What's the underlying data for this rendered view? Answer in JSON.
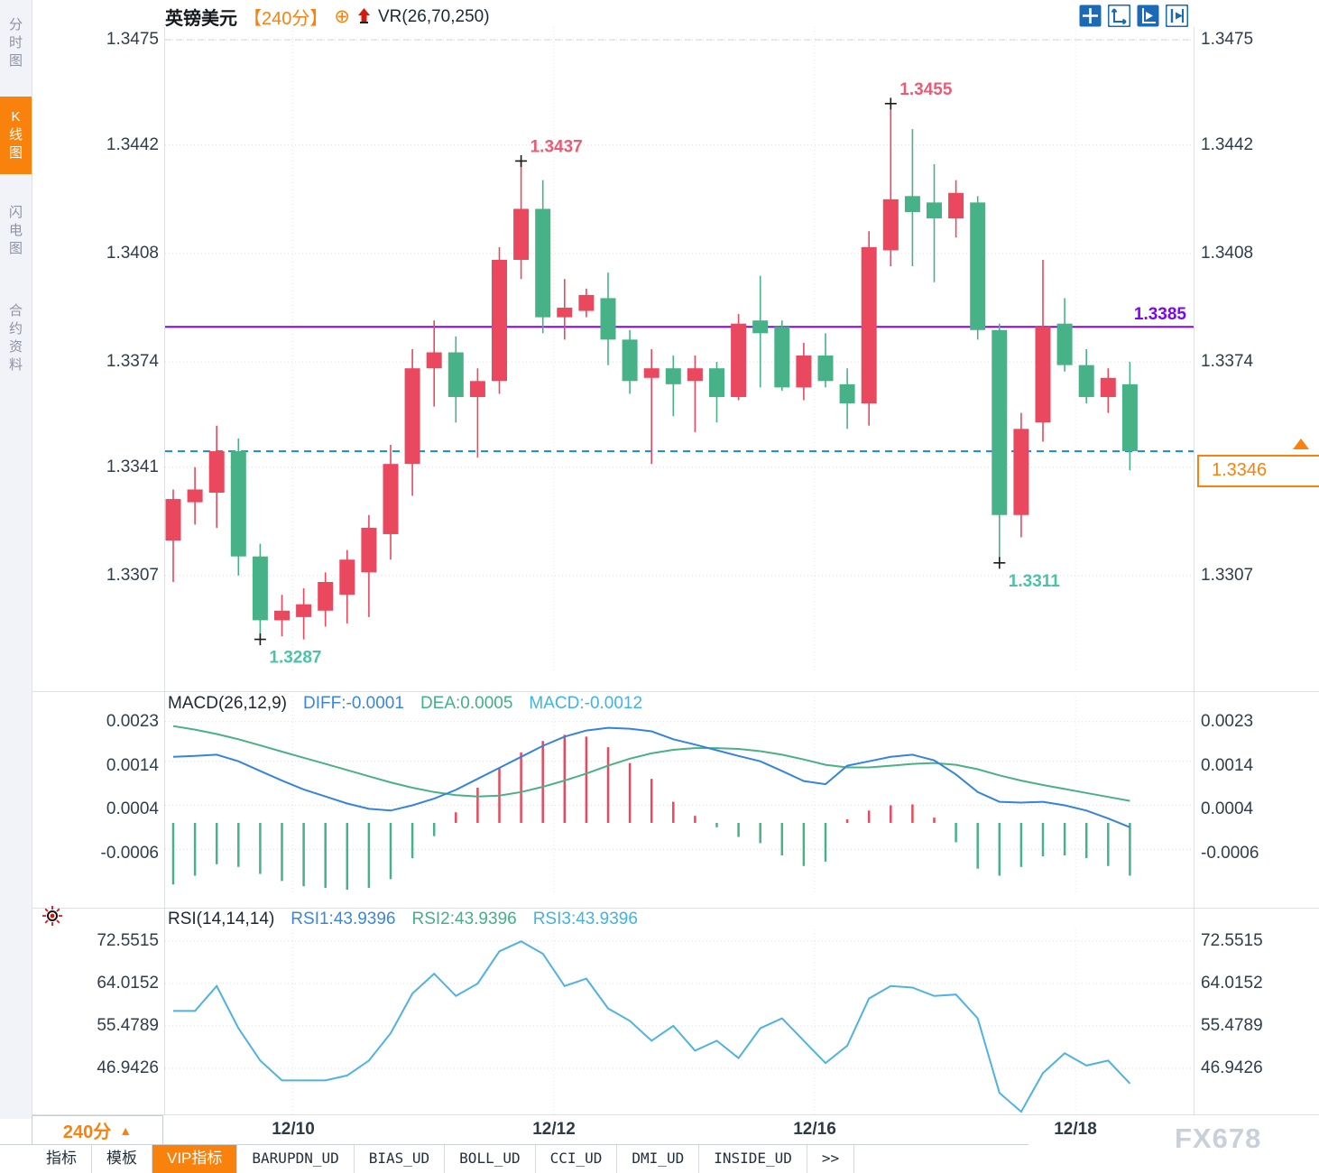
{
  "colors": {
    "up": "#e9485e",
    "down": "#47b287",
    "purple": "#7d05f5",
    "dashed_blue": "#1787e8",
    "orange": "#f8820c",
    "macd_diff": "#3584dc",
    "macd_dea": "#49b183",
    "rsi_line": "#4fb2e2",
    "annotation_high": "#ea5b75",
    "annotation_low": "#4cc2a8",
    "axis_text": "#303d4b",
    "icon_blue": "#1a6ab5"
  },
  "sidebar": {
    "tabs": [
      {
        "label": "分时图",
        "active": false
      },
      {
        "label": "K线图",
        "active": true
      },
      {
        "label": "闪电图",
        "active": false
      },
      {
        "label": "合约资料",
        "active": false
      }
    ]
  },
  "header": {
    "symbol": "英镑美元",
    "period": "【240分】",
    "plus_icon": "⊕",
    "indicator": "VR(26,70,250)"
  },
  "toolbar": {
    "icons": [
      "pan-crosshair",
      "axis-range",
      "auto-follow",
      "goto-latest"
    ]
  },
  "axes": {
    "price": [
      "1.3475",
      "1.3442",
      "1.3408",
      "1.3374",
      "1.3341",
      "1.3307"
    ],
    "macd": [
      "0.0023",
      "0.0014",
      "0.0004",
      "-0.0006"
    ],
    "rsi": [
      "72.5515",
      "64.0152",
      "55.4789",
      "46.9426"
    ]
  },
  "current_price": "1.3346",
  "chart_data": [
    {
      "type": "candlestick",
      "title": "英镑美元 240分",
      "x_labels": [
        "12/10",
        "12/12",
        "12/16",
        "12/18"
      ],
      "day_boundaries": [
        5.5,
        17.5,
        29.5,
        41.5
      ],
      "y_ticks": [
        1.3475,
        1.3442,
        1.3408,
        1.3374,
        1.3341,
        1.3307
      ],
      "ylim": [
        1.32767,
        1.3479
      ],
      "top_dashed_price": 1.3475,
      "ohlc": [
        [
          1.3318,
          1.3334,
          1.3305,
          1.3331
        ],
        [
          1.333,
          1.3341,
          1.3323,
          1.3334
        ],
        [
          1.3333,
          1.3354,
          1.3322,
          1.3346
        ],
        [
          1.3346,
          1.335,
          1.3307,
          1.3313
        ],
        [
          1.3313,
          1.3317,
          1.3287,
          1.3293
        ],
        [
          1.3293,
          1.3301,
          1.3288,
          1.3296
        ],
        [
          1.3294,
          1.3303,
          1.3287,
          1.3298
        ],
        [
          1.3296,
          1.3308,
          1.3291,
          1.3305
        ],
        [
          1.3301,
          1.3315,
          1.3292,
          1.3312
        ],
        [
          1.3308,
          1.3326,
          1.3294,
          1.3322
        ],
        [
          1.332,
          1.3348,
          1.3312,
          1.3342
        ],
        [
          1.3342,
          1.3378,
          1.3332,
          1.3372
        ],
        [
          1.3372,
          1.3387,
          1.336,
          1.3377
        ],
        [
          1.3377,
          1.3382,
          1.3355,
          1.3363
        ],
        [
          1.3363,
          1.3372,
          1.3344,
          1.3368
        ],
        [
          1.3368,
          1.341,
          1.3364,
          1.3406
        ],
        [
          1.3406,
          1.3437,
          1.34,
          1.3422
        ],
        [
          1.3422,
          1.3431,
          1.3383,
          1.3388
        ],
        [
          1.3388,
          1.34,
          1.3381,
          1.3391
        ],
        [
          1.339,
          1.3397,
          1.3388,
          1.3395
        ],
        [
          1.3394,
          1.3402,
          1.3373,
          1.3381
        ],
        [
          1.3381,
          1.3384,
          1.3364,
          1.3368
        ],
        [
          1.3369,
          1.3378,
          1.3342,
          1.3372
        ],
        [
          1.3372,
          1.3376,
          1.3357,
          1.3367
        ],
        [
          1.3368,
          1.3376,
          1.3352,
          1.3372
        ],
        [
          1.3372,
          1.3374,
          1.3355,
          1.3363
        ],
        [
          1.3363,
          1.3389,
          1.3362,
          1.3386
        ],
        [
          1.3387,
          1.3401,
          1.3366,
          1.3383
        ],
        [
          1.3385,
          1.3387,
          1.3365,
          1.3366
        ],
        [
          1.3366,
          1.338,
          1.3362,
          1.3376
        ],
        [
          1.3376,
          1.3383,
          1.3366,
          1.3368
        ],
        [
          1.3367,
          1.3372,
          1.3353,
          1.3361
        ],
        [
          1.3361,
          1.3415,
          1.3354,
          1.341
        ],
        [
          1.3409,
          1.3455,
          1.3404,
          1.3425
        ],
        [
          1.3426,
          1.3447,
          1.3404,
          1.3421
        ],
        [
          1.3424,
          1.3436,
          1.3399,
          1.3419
        ],
        [
          1.3419,
          1.3431,
          1.3413,
          1.3427
        ],
        [
          1.3424,
          1.3426,
          1.3381,
          1.3384
        ],
        [
          1.3384,
          1.3386,
          1.3311,
          1.3326
        ],
        [
          1.3326,
          1.3358,
          1.3319,
          1.3353
        ],
        [
          1.3355,
          1.3406,
          1.3349,
          1.3385
        ],
        [
          1.3386,
          1.3394,
          1.3371,
          1.3373
        ],
        [
          1.3373,
          1.3378,
          1.3361,
          1.3363
        ],
        [
          1.3363,
          1.3372,
          1.3358,
          1.3369
        ],
        [
          1.3367,
          1.3374,
          1.334,
          1.3346
        ]
      ],
      "annotations": [
        {
          "index": 4,
          "price": 1.3287,
          "label": "1.3287",
          "position": "below"
        },
        {
          "index": 16,
          "price": 1.3437,
          "label": "1.3437",
          "position": "above"
        },
        {
          "index": 33,
          "price": 1.3455,
          "label": "1.3455",
          "position": "above"
        },
        {
          "index": 38,
          "price": 1.3311,
          "label": "1.3311",
          "position": "below"
        }
      ],
      "hlines": [
        {
          "price": 1.3385,
          "label": "1.3385",
          "style": "solid",
          "color_key": "purple"
        },
        {
          "price": 1.3346,
          "label": "",
          "style": "dashed",
          "color_key": "dashed_blue"
        }
      ]
    },
    {
      "type": "macd",
      "title": "MACD(26,12,9)",
      "readouts": {
        "diff": "DIFF:-0.0001",
        "dea": "DEA:0.0005",
        "macd": "MACD:-0.0012"
      },
      "y_ticks": [
        0.0023,
        0.0014,
        0.0004,
        -0.0006
      ],
      "ylim": [
        -0.0016,
        0.00287
      ],
      "histogram_rule": "2*(diff-dea)",
      "diff": [
        0.0015,
        0.00152,
        0.00155,
        0.0014,
        0.00118,
        0.00096,
        0.00076,
        0.0006,
        0.00044,
        0.00032,
        0.00028,
        0.0004,
        0.00055,
        0.00075,
        0.001,
        0.00125,
        0.0015,
        0.00175,
        0.00196,
        0.0021,
        0.00216,
        0.00214,
        0.00208,
        0.0019,
        0.00178,
        0.00165,
        0.00152,
        0.0014,
        0.00118,
        0.00095,
        0.00088,
        0.0013,
        0.0014,
        0.0015,
        0.00155,
        0.00142,
        0.0011,
        0.0007,
        0.00048,
        0.00046,
        0.00048,
        0.0004,
        0.00028,
        0.0001,
        -0.0001
      ],
      "dea": [
        0.0022,
        0.00212,
        0.00202,
        0.0019,
        0.00176,
        0.00162,
        0.00148,
        0.00134,
        0.0012,
        0.00106,
        0.00092,
        0.0008,
        0.0007,
        0.00063,
        0.0006,
        0.00062,
        0.0007,
        0.00082,
        0.00096,
        0.00112,
        0.0013,
        0.00146,
        0.00158,
        0.00166,
        0.0017,
        0.0017,
        0.00168,
        0.00163,
        0.00155,
        0.00144,
        0.00132,
        0.00126,
        0.00126,
        0.0013,
        0.00134,
        0.00136,
        0.00132,
        0.00122,
        0.00108,
        0.00096,
        0.00086,
        0.00077,
        0.00068,
        0.00059,
        0.0005
      ]
    },
    {
      "type": "line",
      "title": "RSI(14,14,14)",
      "readouts": {
        "rsi1": "RSI1:43.9396",
        "rsi2": "RSI2:43.9396",
        "rsi3": "RSI3:43.9396"
      },
      "y_ticks": [
        72.5515,
        64.0152,
        55.4789,
        46.9426
      ],
      "ylim": [
        37.68,
        74.91
      ],
      "values": [
        58.5,
        58.5,
        63.5,
        55.0,
        48.5,
        44.5,
        44.5,
        44.5,
        45.5,
        48.5,
        54.0,
        62.0,
        66.0,
        61.5,
        64.0,
        70.5,
        72.5,
        70.0,
        63.5,
        65.0,
        59.0,
        56.5,
        52.5,
        55.5,
        50.5,
        52.5,
        49.0,
        55.0,
        57.0,
        52.5,
        48.0,
        51.5,
        61.0,
        63.5,
        63.2,
        61.5,
        61.8,
        57.0,
        42.0,
        38.2,
        46.0,
        50.0,
        47.5,
        48.5,
        43.9
      ]
    }
  ],
  "bottom": {
    "period_box": "240分",
    "dates": [
      "12/10",
      "12/12",
      "12/16",
      "12/18"
    ],
    "tabs": [
      {
        "label": "指标",
        "active": false
      },
      {
        "label": "模板",
        "active": false
      },
      {
        "label": "VIP指标",
        "active": true
      },
      {
        "label": "BARUPDN_UD",
        "active": false
      },
      {
        "label": "BIAS_UD",
        "active": false
      },
      {
        "label": "BOLL_UD",
        "active": false
      },
      {
        "label": "CCI_UD",
        "active": false
      },
      {
        "label": "DMI_UD",
        "active": false
      },
      {
        "label": "INSIDE_UD",
        "active": false
      },
      {
        "label": ">>",
        "active": false
      }
    ],
    "watermark": "FX678"
  }
}
